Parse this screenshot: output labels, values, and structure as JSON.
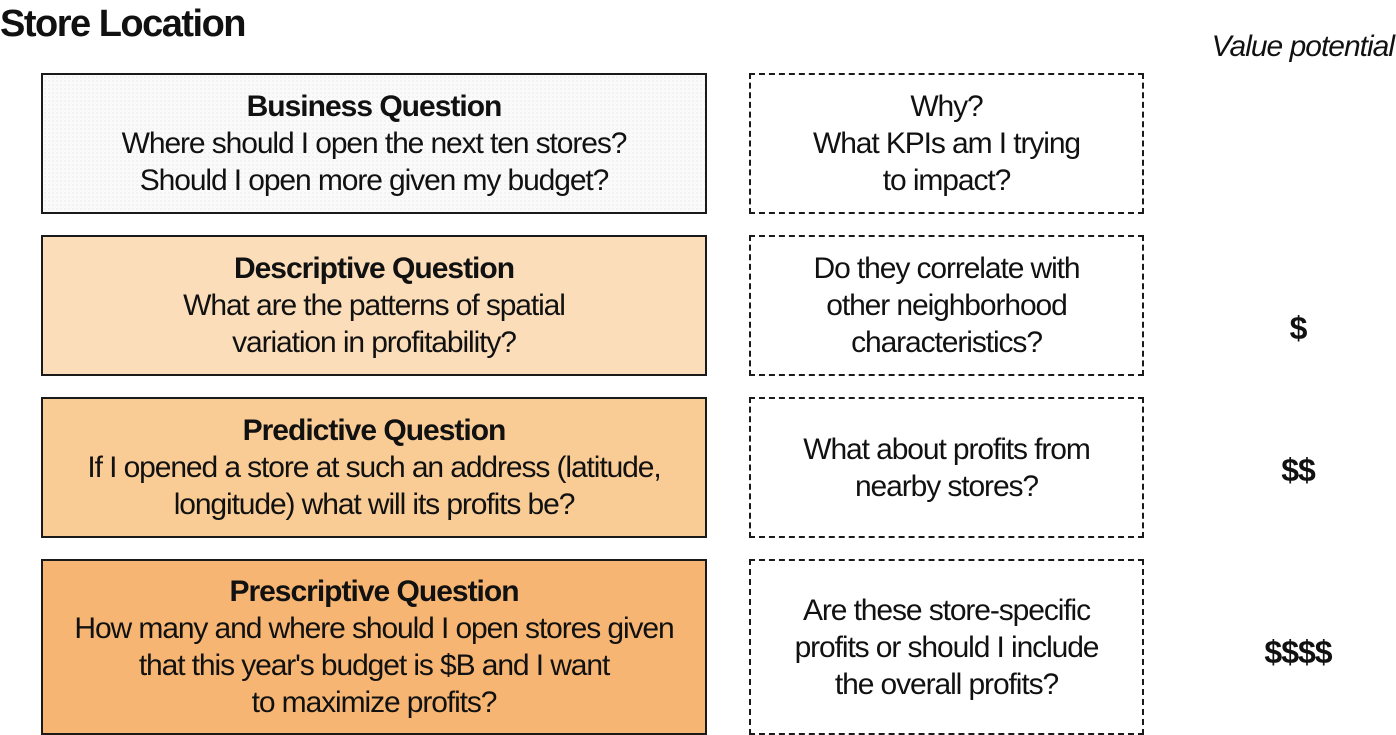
{
  "title": "Store Location",
  "value_header": "Value potential",
  "rows": [
    {
      "question_title": "Business Question",
      "question_text": "Where should I open the next ten stores?\nShould I open more given my budget?",
      "follow_up": "Why?\nWhat KPIs am I trying\nto impact?",
      "value": ""
    },
    {
      "question_title": "Descriptive Question",
      "question_text": "What are the patterns of spatial\nvariation in profitability?",
      "follow_up": "Do they correlate with\nother neighborhood\ncharacteristics?",
      "value": "$"
    },
    {
      "question_title": "Predictive Question",
      "question_text": "If I opened a store at such an address (latitude,\nlongitude) what will its profits be?",
      "follow_up": "What about profits from\nnearby stores?",
      "value": "$$"
    },
    {
      "question_title": "Prescriptive Question",
      "question_text": "How many and where should I open stores given\nthat this year's budget is $B and I want\nto maximize profits?",
      "follow_up": "Are these store-specific\nprofits or should I include\nthe overall profits?",
      "value": "$$$$"
    }
  ],
  "colors": {
    "business_fill": "#fafafa",
    "descriptive_fill": "#fbddb9",
    "predictive_fill": "#f9cc95",
    "prescriptive_fill": "#f6b572",
    "border": "#1a1a1a"
  }
}
